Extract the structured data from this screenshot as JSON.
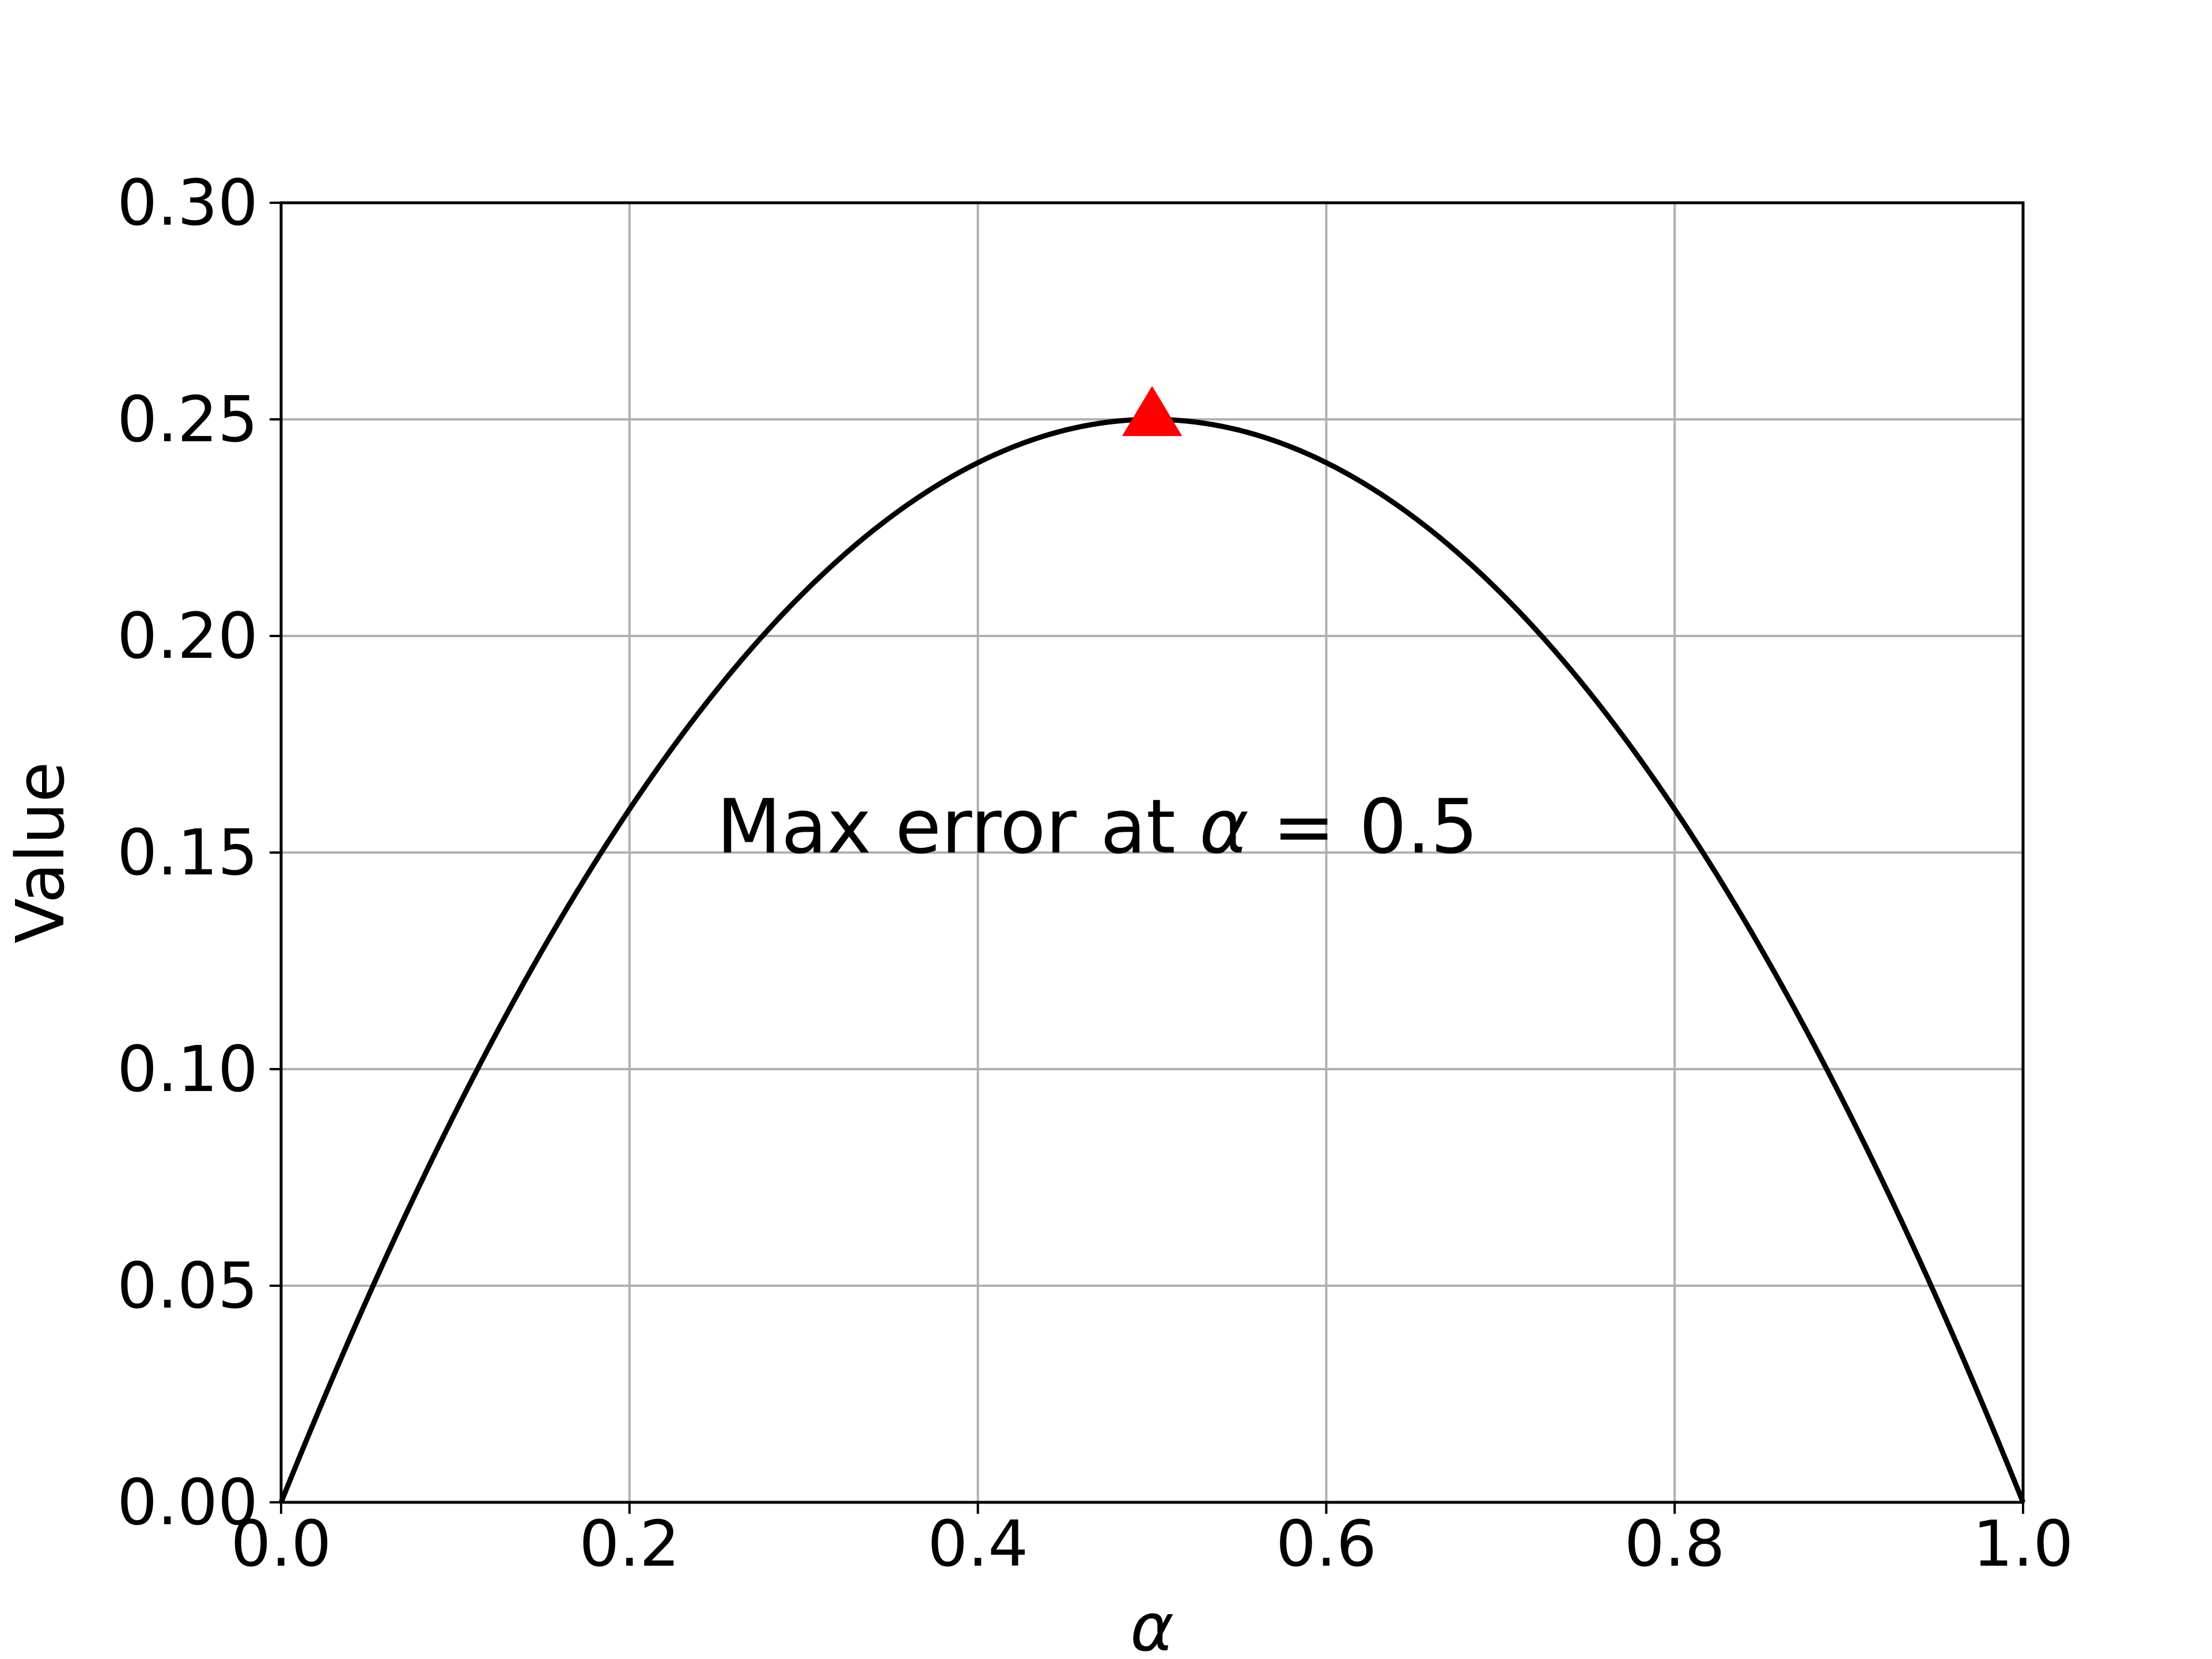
{
  "chart_data": {
    "type": "line",
    "title": "",
    "xlabel": "α",
    "ylabel": "Value",
    "xlim": [
      0.0,
      1.0
    ],
    "ylim": [
      0.0,
      0.3
    ],
    "grid": true,
    "x_ticks": [
      "0.0",
      "0.2",
      "0.4",
      "0.6",
      "0.8",
      "1.0"
    ],
    "y_ticks": [
      "0.00",
      "0.05",
      "0.10",
      "0.15",
      "0.20",
      "0.25",
      "0.30"
    ],
    "series": [
      {
        "color": "#000000",
        "x": [
          0.0,
          0.05,
          0.1,
          0.15,
          0.2,
          0.25,
          0.3,
          0.35,
          0.4,
          0.45,
          0.5,
          0.55,
          0.6,
          0.65,
          0.7,
          0.75,
          0.8,
          0.85,
          0.9,
          0.95,
          1.0
        ],
        "y": [
          0.0,
          0.0475,
          0.09,
          0.1275,
          0.16,
          0.1875,
          0.21,
          0.2275,
          0.24,
          0.2475,
          0.25,
          0.2475,
          0.24,
          0.2275,
          0.21,
          0.1875,
          0.16,
          0.1275,
          0.09,
          0.0475,
          0.0
        ]
      }
    ],
    "marker": {
      "x": 0.5,
      "y": 0.25,
      "shape": "triangle-up",
      "color": "#ff0000"
    },
    "annotation": {
      "text_prefix": "Max error at ",
      "symbol": "α",
      "text_suffix": " = 0.5",
      "x": 0.25,
      "y": 0.15
    }
  }
}
